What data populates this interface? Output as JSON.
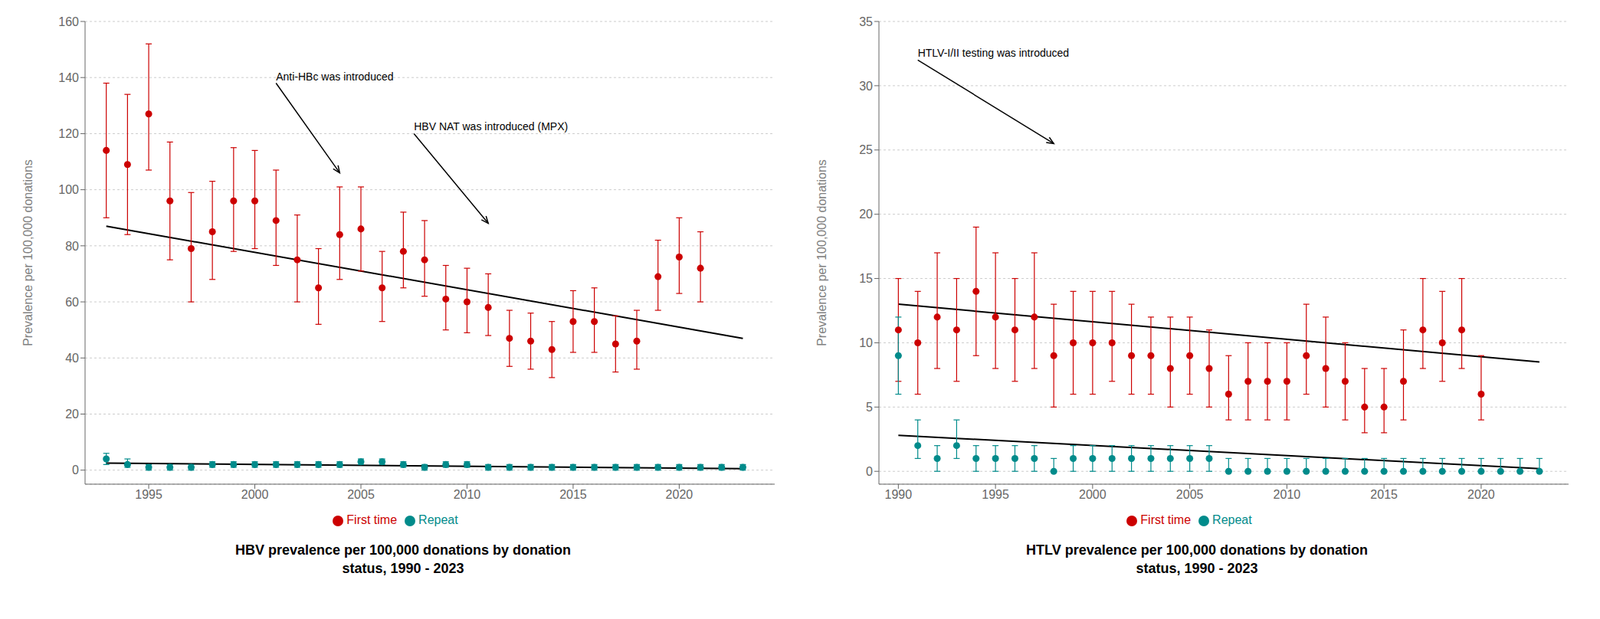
{
  "chart_data": [
    {
      "type": "scatter",
      "title": "HBV prevalence per 100,000 donations by donation\nstatus, 1990 - 2023",
      "ylabel": "Prevalence per 100,000 donations",
      "x": [
        1993,
        1994,
        1995,
        1996,
        1997,
        1998,
        1999,
        2000,
        2001,
        2002,
        2003,
        2004,
        2005,
        2006,
        2007,
        2008,
        2009,
        2010,
        2011,
        2012,
        2013,
        2014,
        2015,
        2016,
        2017,
        2018,
        2019,
        2020,
        2021,
        2022,
        2023
      ],
      "series": [
        {
          "name": "First time",
          "color": "#CC0000",
          "marker": "circle",
          "values": [
            114,
            109,
            127,
            96,
            79,
            85,
            96,
            96,
            89,
            75,
            65,
            84,
            86,
            65,
            78,
            75,
            61,
            60,
            58,
            47,
            46,
            43,
            53,
            53,
            45,
            46,
            69,
            76,
            72,
            null,
            null
          ],
          "lower": [
            90,
            84,
            107,
            75,
            60,
            68,
            78,
            79,
            73,
            60,
            52,
            68,
            71,
            53,
            65,
            62,
            50,
            49,
            48,
            37,
            36,
            33,
            42,
            42,
            35,
            36,
            57,
            63,
            60,
            null,
            null
          ],
          "upper": [
            138,
            134,
            152,
            117,
            99,
            103,
            115,
            114,
            107,
            91,
            79,
            101,
            101,
            78,
            92,
            89,
            73,
            72,
            70,
            57,
            56,
            53,
            64,
            65,
            55,
            57,
            82,
            90,
            85,
            null,
            null
          ]
        },
        {
          "name": "Repeat",
          "color": "#008B8B",
          "marker": "circle",
          "values": [
            4,
            2,
            1,
            1,
            1,
            2,
            2,
            2,
            2,
            2,
            2,
            2,
            3,
            3,
            2,
            1,
            2,
            2,
            1,
            1,
            1,
            1,
            1,
            1,
            1,
            1,
            1,
            1,
            1,
            1,
            1
          ],
          "lower": [
            2,
            1,
            0,
            0,
            0,
            1,
            1,
            1,
            1,
            1,
            1,
            1,
            2,
            2,
            1,
            0,
            1,
            1,
            0,
            0,
            0,
            0,
            0,
            0,
            0,
            0,
            0,
            0,
            0,
            0,
            0
          ],
          "upper": [
            6,
            4,
            2,
            2,
            2,
            3,
            3,
            3,
            3,
            3,
            3,
            3,
            4,
            4,
            3,
            2,
            3,
            3,
            2,
            2,
            2,
            2,
            2,
            2,
            2,
            2,
            2,
            2,
            2,
            2,
            2
          ]
        },
        {
          "type": "line",
          "color": "#000000",
          "x": [
            1993,
            2023
          ],
          "values": [
            87,
            47
          ]
        },
        {
          "type": "line",
          "color": "#000000",
          "x": [
            1993,
            2023
          ],
          "values": [
            2.5,
            0.5
          ]
        }
      ],
      "annotations": [
        {
          "text": "Anti-HBc was introduced",
          "x": 2004,
          "y": 106,
          "text_x": 2001,
          "text_y": 138
        },
        {
          "text": "HBV NAT was introduced (MPX)",
          "x": 2011,
          "y": 88,
          "text_x": 2007.5,
          "text_y": 120
        }
      ],
      "xlim": [
        1992,
        2024.5
      ],
      "xticks": [
        1995,
        2000,
        2005,
        2010,
        2015,
        2020
      ],
      "ylim": [
        -5,
        160
      ],
      "yticks": [
        0,
        20,
        40,
        60,
        80,
        100,
        120,
        140,
        160
      ],
      "grid": true,
      "legend": "bottom"
    },
    {
      "type": "scatter",
      "title": "HTLV prevalence per 100,000 donations by donation\nstatus, 1990 - 2023",
      "ylabel": "Prevalence per 100,000 donations",
      "x": [
        1990,
        1991,
        1992,
        1993,
        1994,
        1995,
        1996,
        1997,
        1998,
        1999,
        2000,
        2001,
        2002,
        2003,
        2004,
        2005,
        2006,
        2007,
        2008,
        2009,
        2010,
        2011,
        2012,
        2013,
        2014,
        2015,
        2016,
        2017,
        2018,
        2019,
        2020,
        2021,
        2022,
        2023
      ],
      "series": [
        {
          "name": "First time",
          "color": "#CC0000",
          "marker": "circle",
          "values": [
            11,
            10,
            12,
            11,
            14,
            12,
            11,
            12,
            9,
            10,
            10,
            10,
            9,
            9,
            8,
            9,
            8,
            6,
            7,
            7,
            7,
            9,
            8,
            7,
            5,
            5,
            7,
            11,
            10,
            11,
            6,
            null,
            null,
            null
          ],
          "lower": [
            7,
            6,
            8,
            7,
            9,
            8,
            7,
            8,
            5,
            6,
            6,
            7,
            6,
            6,
            5,
            6,
            5,
            4,
            4,
            4,
            4,
            6,
            5,
            4,
            3,
            3,
            4,
            8,
            7,
            8,
            4,
            null,
            null,
            null
          ],
          "upper": [
            15,
            14,
            17,
            15,
            19,
            17,
            15,
            17,
            13,
            14,
            14,
            14,
            13,
            12,
            12,
            12,
            11,
            9,
            10,
            10,
            10,
            13,
            12,
            10,
            8,
            8,
            11,
            15,
            14,
            15,
            9,
            null,
            null,
            null
          ]
        },
        {
          "name": "Repeat",
          "color": "#008B8B",
          "marker": "circle",
          "values": [
            9,
            2,
            1,
            2,
            1,
            1,
            1,
            1,
            0,
            1,
            1,
            1,
            1,
            1,
            1,
            1,
            1,
            0,
            0,
            0,
            0,
            0,
            0,
            0,
            0,
            0,
            0,
            0,
            0,
            0,
            0,
            0,
            0,
            0
          ],
          "lower": [
            6,
            1,
            0,
            1,
            0,
            0,
            0,
            0,
            0,
            0,
            0,
            0,
            0,
            0,
            0,
            0,
            0,
            0,
            0,
            0,
            0,
            0,
            0,
            0,
            0,
            0,
            0,
            0,
            0,
            0,
            0,
            0,
            0,
            0
          ],
          "upper": [
            12,
            4,
            2,
            4,
            2,
            2,
            2,
            2,
            1,
            2,
            2,
            2,
            2,
            2,
            2,
            2,
            2,
            1,
            1,
            1,
            1,
            1,
            1,
            1,
            1,
            1,
            1,
            1,
            1,
            1,
            1,
            1,
            1,
            1
          ]
        },
        {
          "type": "line",
          "color": "#000000",
          "x": [
            1990,
            2023
          ],
          "values": [
            13.0,
            8.5
          ]
        },
        {
          "type": "line",
          "color": "#000000",
          "x": [
            1990,
            2023
          ],
          "values": [
            2.8,
            0.2
          ]
        }
      ],
      "annotations": [
        {
          "text": "HTLV-I/II testing was introduced",
          "x": 1998,
          "y": 25.5,
          "text_x": 1991,
          "text_y": 32
        }
      ],
      "xlim": [
        1989,
        2024.5
      ],
      "xticks": [
        1990,
        1995,
        2000,
        2005,
        2010,
        2015,
        2020
      ],
      "ylim": [
        -1,
        35
      ],
      "yticks": [
        0,
        5,
        10,
        15,
        20,
        25,
        30,
        35
      ],
      "grid": true,
      "legend": "bottom"
    }
  ]
}
